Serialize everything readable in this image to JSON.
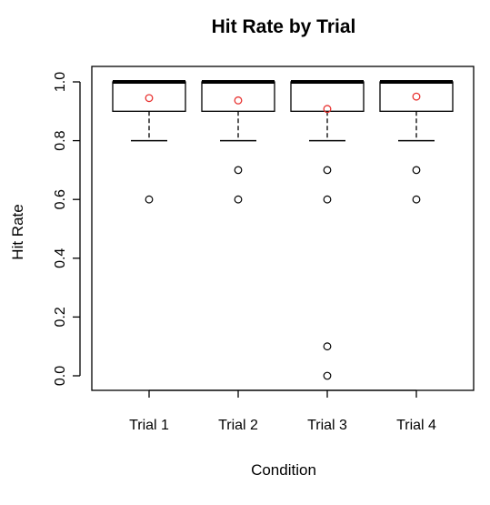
{
  "chart_data": {
    "type": "boxplot",
    "title": "Hit Rate by Trial",
    "xlabel": "Condition",
    "ylabel": "Hit Rate",
    "ylim": [
      0.0,
      1.0
    ],
    "yticks": [
      "0.0",
      "0.2",
      "0.4",
      "0.6",
      "0.8",
      "1.0"
    ],
    "categories": [
      "Trial 1",
      "Trial 2",
      "Trial 3",
      "Trial 4"
    ],
    "boxes": [
      {
        "category": "Trial 1",
        "whisker_low": 0.8,
        "q1": 0.9,
        "median": 1.0,
        "q3": 1.0,
        "whisker_high": 1.0,
        "outliers": [
          0.6
        ],
        "mean": 0.945
      },
      {
        "category": "Trial 2",
        "whisker_low": 0.8,
        "q1": 0.9,
        "median": 1.0,
        "q3": 1.0,
        "whisker_high": 1.0,
        "outliers": [
          0.7,
          0.6
        ],
        "mean": 0.937
      },
      {
        "category": "Trial 3",
        "whisker_low": 0.8,
        "q1": 0.9,
        "median": 1.0,
        "q3": 1.0,
        "whisker_high": 1.0,
        "outliers": [
          0.7,
          0.6,
          0.1,
          0.0
        ],
        "mean": 0.908
      },
      {
        "category": "Trial 4",
        "whisker_low": 0.8,
        "q1": 0.9,
        "median": 1.0,
        "q3": 1.0,
        "whisker_high": 1.0,
        "outliers": [
          0.7,
          0.6
        ],
        "mean": 0.95
      }
    ],
    "colors": {
      "box": "#000000",
      "outlier": "#000000",
      "mean": "#e8312f"
    },
    "grid": false
  }
}
